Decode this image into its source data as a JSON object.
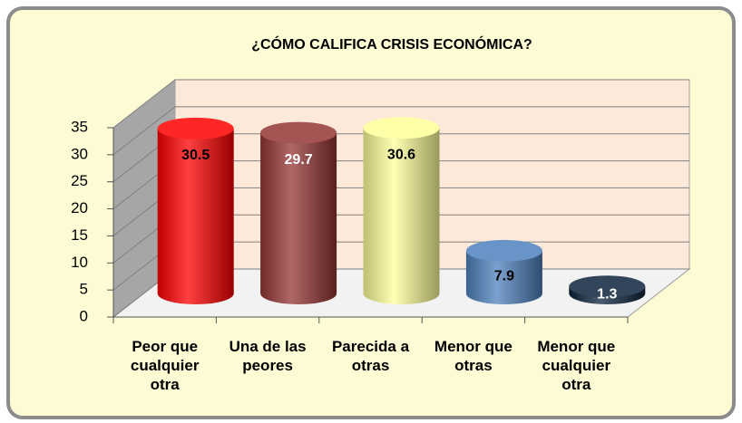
{
  "chart_data": {
    "type": "bar",
    "title": "¿CÓMO CALIFICA CRISIS ECONÓMICA?",
    "categories": [
      "Peor que cualquier otra",
      "Una de las peores",
      "Parecida a otras",
      "Menor que otras",
      "Menor que cualquier otra"
    ],
    "values": [
      30.5,
      29.7,
      30.6,
      7.9,
      1.3
    ],
    "colors": [
      "#ff0000",
      "#943634",
      "#ffff99",
      "#4f81bd",
      "#0f243e"
    ],
    "label_colors": [
      "#000000",
      "#ffffff",
      "#000000",
      "#000000",
      "#ffffff"
    ],
    "ylim": [
      0,
      35
    ],
    "yticks": [
      0,
      5,
      10,
      15,
      20,
      25,
      30,
      35
    ],
    "grid": true
  }
}
